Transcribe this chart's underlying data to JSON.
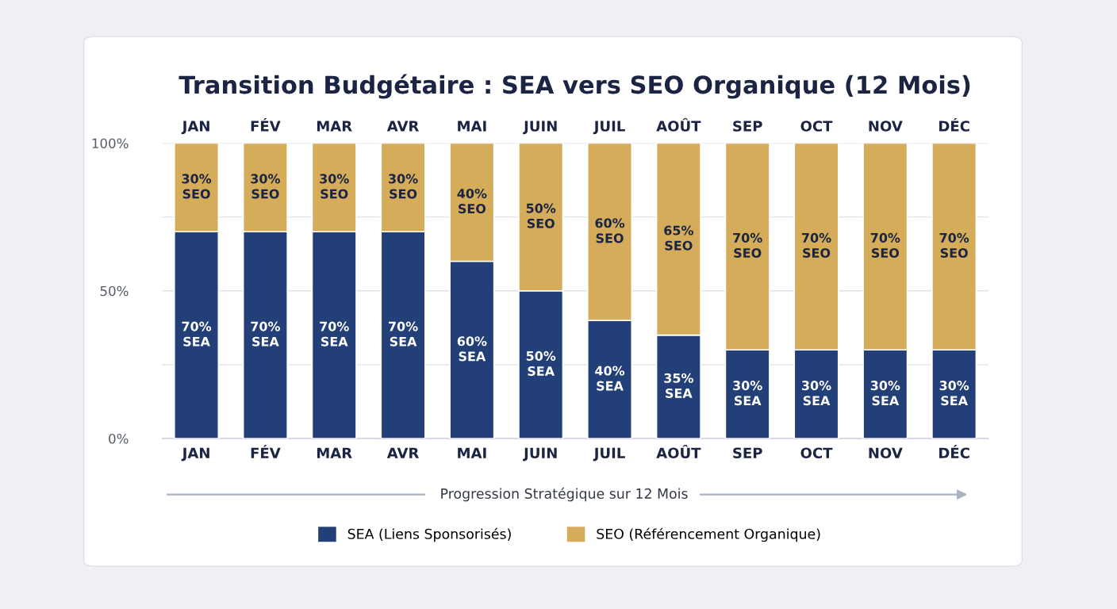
{
  "chart_data": {
    "type": "bar",
    "title": "Transition Budgétaire : SEA vers SEO Organique (12 Mois)",
    "xlabel": "Progression Stratégique sur 12 Mois",
    "categories": [
      "JAN",
      "FÉV",
      "MAR",
      "AVR",
      "MAI",
      "JUIN",
      "JUIL",
      "AOÛT",
      "SEP",
      "OCT",
      "NOV",
      "DÉC"
    ],
    "stacked": true,
    "series": [
      {
        "name": "SEA (Liens Sponsorisés)",
        "color": "#233f78",
        "values": [
          70,
          70,
          70,
          70,
          60,
          50,
          40,
          35,
          30,
          30,
          30,
          30
        ],
        "value_labels": [
          "70%\nSEA",
          "70%\nSEA",
          "70%\nSEA",
          "70%\nSEA",
          "60%\nSEA",
          "50%\nSEA",
          "40%\nSEA",
          "35%\nSEA",
          "30%\nSEA",
          "30%\nSEA",
          "30%\nSEA",
          "30%\nSEA"
        ]
      },
      {
        "name": "SEO (Référencement Organique)",
        "color": "#d4ac5a",
        "values": [
          30,
          30,
          30,
          30,
          40,
          50,
          60,
          65,
          70,
          70,
          70,
          70
        ],
        "value_labels": [
          "30%\nSEO",
          "30%\nSEO",
          "30%\nSEO",
          "30%\nSEO",
          "40%\nSEO",
          "50%\nSEO",
          "60%\nSEO",
          "65%\nSEO",
          "70%\nSEO",
          "70%\nSEO",
          "70%\nSEO",
          "70%\nSEO"
        ]
      }
    ],
    "ylim": [
      0,
      100
    ],
    "yticks": [
      {
        "value": 0,
        "label": "0%"
      },
      {
        "value": 25,
        "label": null
      },
      {
        "value": 50,
        "label": "50%"
      },
      {
        "value": 75,
        "label": null
      },
      {
        "value": 100,
        "label": "100%"
      }
    ],
    "grid": "y",
    "legend": "bottom"
  }
}
